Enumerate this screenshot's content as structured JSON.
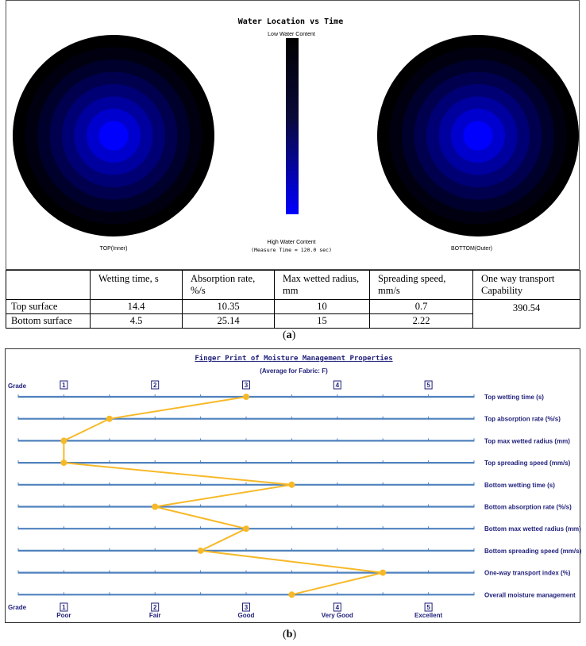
{
  "chart_data": [
    {
      "type": "heatmap",
      "title": "Water Location vs Time",
      "scale_top_label": "Low Water Content",
      "scale_bottom_label": "High Water Content",
      "measure_time_note": "(Measure Time = 120.0 sec)",
      "left_label": "TOP(Inner)",
      "right_label": "BOTTOM(Outer)",
      "colors": {
        "low": "#000000",
        "high": "#0000ff"
      }
    },
    {
      "type": "table",
      "columns": [
        "",
        "Wetting time, s",
        "Absorption rate, %/s",
        "Max wetted radius, mm",
        "Spreading speed, mm/s",
        "One way transport Capability"
      ],
      "rows": [
        {
          "label": "Top surface",
          "values": [
            "14.4",
            "10.35",
            "10",
            "0.7"
          ]
        },
        {
          "label": "Bottom surface",
          "values": [
            "4.5",
            "25.14",
            "15",
            "2.22"
          ]
        }
      ],
      "one_way_transport": "390.54"
    },
    {
      "type": "line",
      "title": "Finger Print of Moisture Management Properties",
      "subtitle": "(Average for Fabric: F)",
      "grade_label": "Grade",
      "grades": [
        "1",
        "2",
        "3",
        "4",
        "5"
      ],
      "grade_words": [
        "Poor",
        "Fair",
        "Good",
        "Very Good",
        "Excellent"
      ],
      "xlim": [
        0.5,
        5.5
      ],
      "properties": [
        {
          "name": "Top wetting time (s)",
          "grade": 3
        },
        {
          "name": "Top absorption rate (%/s)",
          "grade": 1.5
        },
        {
          "name": "Top max wetted radius (mm)",
          "grade": 1
        },
        {
          "name": "Top spreading speed (mm/s)",
          "grade": 1
        },
        {
          "name": "Bottom wetting time (s)",
          "grade": 3.5
        },
        {
          "name": "Bottom absorption rate (%/s)",
          "grade": 2
        },
        {
          "name": "Bottom max wetted radius (mm)",
          "grade": 3
        },
        {
          "name": "Bottom spreading speed (mm/s)",
          "grade": 2.5
        },
        {
          "name": "One-way transport index (%)",
          "grade": 4.5
        },
        {
          "name": "Overall moisture management",
          "grade": 3.5
        }
      ],
      "colors": {
        "axis": "#4f81bd",
        "line": "#f7b928",
        "text": "#1f1f7a"
      }
    }
  ],
  "captions": {
    "a": "a",
    "b": "b"
  }
}
